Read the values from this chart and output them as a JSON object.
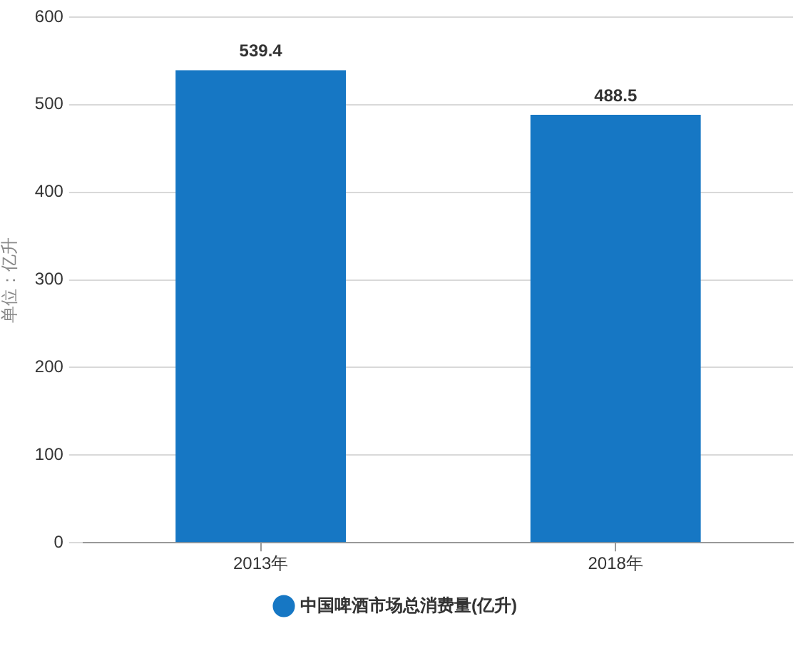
{
  "chart_data": {
    "type": "bar",
    "categories": [
      "2013年",
      "2018年"
    ],
    "series": [
      {
        "name": "中国啤酒市场总消费量(亿升)",
        "color": "#1677c4",
        "values": [
          539.4,
          488.5
        ]
      }
    ],
    "ylabel": "单位：亿升",
    "ylim": [
      0,
      600
    ],
    "yticks": [
      0,
      100,
      200,
      300,
      400,
      500,
      600
    ],
    "grid": "y",
    "legend": "bottom",
    "data_labels": true
  }
}
